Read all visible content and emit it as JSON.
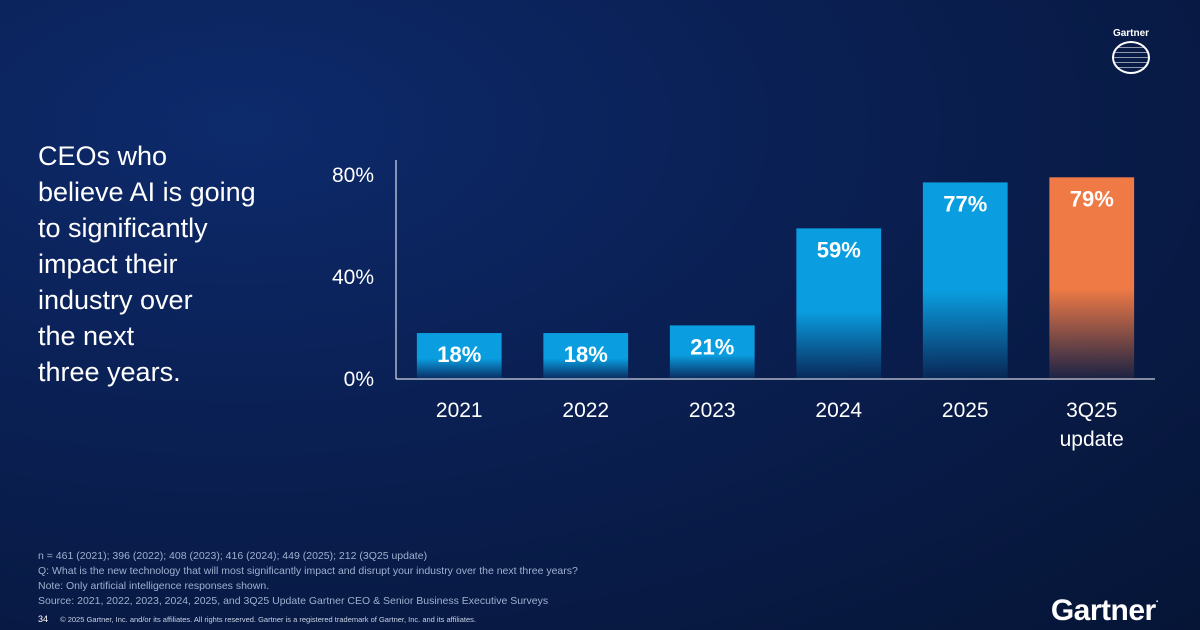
{
  "headline": "CEOs who\nbelieve AI is going\nto significantly\nimpact their\nindustry over\nthe next\nthree years.",
  "chart_data": {
    "type": "bar",
    "categories": [
      "2021",
      "2022",
      "2023",
      "2024",
      "2025",
      "3Q25\nupdate"
    ],
    "values": [
      18,
      18,
      21,
      59,
      77,
      79
    ],
    "value_labels": [
      "18%",
      "18%",
      "21%",
      "59%",
      "77%",
      "79%"
    ],
    "y_ticks": [
      {
        "value": 0,
        "label": "0%"
      },
      {
        "value": 40,
        "label": "40%"
      },
      {
        "value": 80,
        "label": "80%"
      }
    ],
    "ylim": [
      0,
      85
    ],
    "title": "",
    "xlabel": "",
    "ylabel": "",
    "grid": false,
    "colors": {
      "default": "#0a9ee0",
      "highlight": "#f07a45"
    },
    "highlight_index": 5
  },
  "footnotes": [
    "n = 461 (2021); 396 (2022); 408 (2023); 416 (2024); 449 (2025); 212 (3Q25 update)",
    "Q: What is the new technology that will most significantly impact and disrupt your industry over the next three years?",
    "Note: Only artificial intelligence responses shown.",
    "Source: 2021, 2022, 2023, 2024, 2025, and 3Q25 Update Gartner CEO & Senior Business Executive Surveys"
  ],
  "page_number": "34",
  "copyright": "© 2025 Gartner, Inc. and/or its affiliates. All rights reserved. Gartner is a registered trademark of Gartner, Inc. and its affiliates.",
  "brand": "Gartner",
  "brand_dot": ".",
  "badge_word": "Gartner",
  "colors": {
    "background": "#0a1f52",
    "text": "#ffffff",
    "footnote": "#9fb0cf"
  }
}
